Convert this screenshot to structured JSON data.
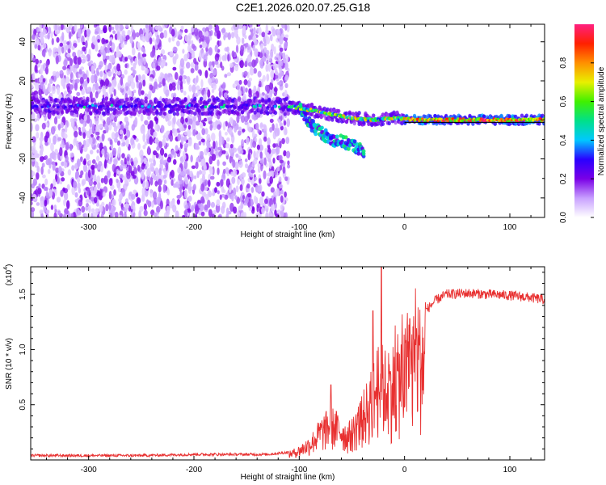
{
  "title": "C2E1.2026.020.07.25.G18",
  "chart_data": [
    {
      "type": "heatmap",
      "xlabel": "Height of straight line (km)",
      "ylabel": "Frequency (Hz)",
      "xlim": [
        -355,
        133
      ],
      "ylim": [
        -50,
        49
      ],
      "x_ticks": [
        -300,
        -200,
        -100,
        0,
        100
      ],
      "y_ticks": [
        -40,
        -20,
        0,
        20,
        40
      ],
      "colorbar": {
        "label": "Normalized spectral amplitude",
        "range": [
          0,
          1
        ],
        "ticks": [
          "0.0",
          "0.2",
          "0.4",
          "0.6",
          "0.8"
        ],
        "colors": [
          "#ffffff",
          "#c8a0ff",
          "#7a00e6",
          "#2a00ff",
          "#00c8ff",
          "#00e08a",
          "#40f000",
          "#e8f000",
          "#ff9000",
          "#ff2000",
          "#ff2080"
        ]
      },
      "ridge": [
        {
          "x": -355,
          "y": 7
        },
        {
          "x": -300,
          "y": 7
        },
        {
          "x": -250,
          "y": 7
        },
        {
          "x": -200,
          "y": 7
        },
        {
          "x": -150,
          "y": 7
        },
        {
          "x": -130,
          "y": 7
        },
        {
          "x": -110,
          "y": 7
        },
        {
          "x": -90,
          "y": 5
        },
        {
          "x": -70,
          "y": 3
        },
        {
          "x": -50,
          "y": 1
        },
        {
          "x": -30,
          "y": 0
        },
        {
          "x": -10,
          "y": 1
        },
        {
          "x": 10,
          "y": 0
        },
        {
          "x": 50,
          "y": 0
        },
        {
          "x": 100,
          "y": 0
        },
        {
          "x": 133,
          "y": 0
        }
      ],
      "branch": [
        {
          "x": -100,
          "y": 6
        },
        {
          "x": -90,
          "y": -2
        },
        {
          "x": -80,
          "y": -6
        },
        {
          "x": -70,
          "y": -10
        },
        {
          "x": -60,
          "y": -11
        },
        {
          "x": -45,
          "y": -14
        },
        {
          "x": -38,
          "y": -17
        }
      ],
      "noise_region_x": [
        -355,
        -110
      ]
    },
    {
      "type": "line",
      "xlabel": "Height of straight line (km)",
      "ylabel": "SNR (10 * v/v)",
      "y_multiplier": "(x10",
      "y_multiplier_exp": "4",
      "xlim": [
        -355,
        133
      ],
      "ylim": [
        0,
        1.75
      ],
      "x_ticks": [
        -300,
        -200,
        -100,
        0,
        100
      ],
      "y_ticks": [
        0.5,
        1.0,
        1.5
      ],
      "y_tick_labels": [
        "0.5",
        "1.0",
        "1.5"
      ],
      "color": "#e83030",
      "envelope": [
        {
          "x": -355,
          "y": 0.04
        },
        {
          "x": -250,
          "y": 0.04
        },
        {
          "x": -200,
          "y": 0.05
        },
        {
          "x": -130,
          "y": 0.05
        },
        {
          "x": -110,
          "y": 0.07
        },
        {
          "x": -100,
          "y": 0.12
        },
        {
          "x": -90,
          "y": 0.2
        },
        {
          "x": -80,
          "y": 0.35
        },
        {
          "x": -70,
          "y": 0.45
        },
        {
          "x": -60,
          "y": 0.38
        },
        {
          "x": -55,
          "y": 0.3
        },
        {
          "x": -50,
          "y": 0.35
        },
        {
          "x": -40,
          "y": 0.55
        },
        {
          "x": -30,
          "y": 0.8
        },
        {
          "x": -25,
          "y": 1.0
        },
        {
          "x": -20,
          "y": 0.95
        },
        {
          "x": -15,
          "y": 0.9
        },
        {
          "x": -10,
          "y": 1.0
        },
        {
          "x": 0,
          "y": 1.1
        },
        {
          "x": 10,
          "y": 1.25
        },
        {
          "x": 20,
          "y": 1.35
        },
        {
          "x": 30,
          "y": 1.45
        },
        {
          "x": 40,
          "y": 1.5
        },
        {
          "x": 60,
          "y": 1.51
        },
        {
          "x": 80,
          "y": 1.5
        },
        {
          "x": 100,
          "y": 1.49
        },
        {
          "x": 120,
          "y": 1.47
        },
        {
          "x": 133,
          "y": 1.45
        }
      ],
      "peaks": [
        {
          "x": -22,
          "y": 1.75
        },
        {
          "x": -70,
          "y": 0.68
        },
        {
          "x": -30,
          "y": 1.35
        },
        {
          "x": 5,
          "y": 1.28
        }
      ]
    }
  ]
}
